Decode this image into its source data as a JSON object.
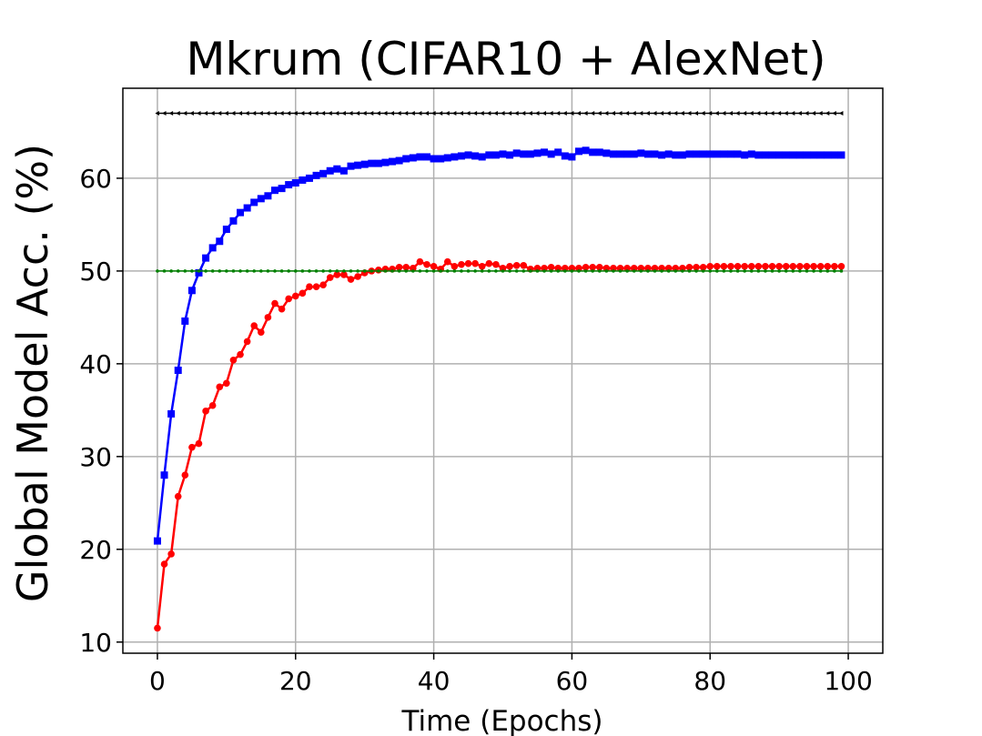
{
  "chart_data": {
    "type": "line",
    "title": "Mkrum (CIFAR10 + AlexNet)",
    "xlabel": "Time (Epochs)",
    "ylabel": "Global Model Acc. (%)",
    "x": [
      0,
      1,
      2,
      3,
      4,
      5,
      6,
      7,
      8,
      9,
      10,
      11,
      12,
      13,
      14,
      15,
      16,
      17,
      18,
      19,
      20,
      21,
      22,
      23,
      24,
      25,
      26,
      27,
      28,
      29,
      30,
      31,
      32,
      33,
      34,
      35,
      36,
      37,
      38,
      39,
      40,
      41,
      42,
      43,
      44,
      45,
      46,
      47,
      48,
      49,
      50,
      51,
      52,
      53,
      54,
      55,
      56,
      57,
      58,
      59,
      60,
      61,
      62,
      63,
      64,
      65,
      66,
      67,
      68,
      69,
      70,
      71,
      72,
      73,
      74,
      75,
      76,
      77,
      78,
      79,
      80,
      81,
      82,
      83,
      84,
      85,
      86,
      87,
      88,
      89,
      90,
      91,
      92,
      93,
      94,
      95,
      96,
      97,
      98,
      99
    ],
    "series": [
      {
        "color": "#0000ff",
        "marker": "square",
        "values": [
          20.9,
          28,
          34.6,
          39.3,
          44.6,
          47.9,
          49.8,
          51.4,
          52.5,
          53.2,
          54.5,
          55.4,
          56.3,
          56.8,
          57.4,
          57.8,
          58.1,
          58.7,
          58.9,
          59.3,
          59.5,
          59.8,
          60,
          60.3,
          60.5,
          60.8,
          61,
          60.8,
          61.3,
          61.4,
          61.5,
          61.6,
          61.6,
          61.7,
          61.8,
          61.9,
          62.1,
          62.2,
          62.3,
          62.3,
          62.1,
          62.1,
          62.2,
          62.3,
          62.4,
          62.5,
          62.4,
          62.3,
          62.5,
          62.5,
          62.6,
          62.5,
          62.7,
          62.6,
          62.6,
          62.7,
          62.8,
          62.6,
          62.8,
          62.4,
          62.3,
          62.9,
          63,
          62.8,
          62.8,
          62.7,
          62.6,
          62.6,
          62.6,
          62.6,
          62.7,
          62.6,
          62.6,
          62.5,
          62.6,
          62.5,
          62.5,
          62.6,
          62.6,
          62.6,
          62.6,
          62.6,
          62.6,
          62.6,
          62.6,
          62.5,
          62.6,
          62.5,
          62.5,
          62.5,
          62.5,
          62.5,
          62.5,
          62.5,
          62.5,
          62.5,
          62.5,
          62.5,
          62.5,
          62.5
        ]
      },
      {
        "color": "#ff0000",
        "marker": "circle",
        "values": [
          11.5,
          18.4,
          19.5,
          25.7,
          28,
          31,
          31.4,
          34.9,
          35.5,
          37.5,
          37.9,
          40.4,
          41,
          42.4,
          44.1,
          43.4,
          45,
          46.5,
          45.9,
          47,
          47.3,
          47.6,
          48.3,
          48.3,
          48.5,
          49.3,
          49.6,
          49.6,
          49.1,
          49.4,
          49.8,
          50,
          50.1,
          50.2,
          50.2,
          50.4,
          50.4,
          50.3,
          51,
          50.7,
          50.5,
          50.2,
          51,
          50.5,
          50.7,
          50.8,
          50.8,
          50.5,
          50.8,
          50.7,
          50.3,
          50.5,
          50.6,
          50.6,
          50.2,
          50.3,
          50.3,
          50.4,
          50.3,
          50.3,
          50.3,
          50.3,
          50.4,
          50.4,
          50.4,
          50.3,
          50.3,
          50.3,
          50.3,
          50.3,
          50.3,
          50.3,
          50.3,
          50.3,
          50.3,
          50.3,
          50.3,
          50.4,
          50.4,
          50.4,
          50.5,
          50.5,
          50.5,
          50.5,
          50.5,
          50.5,
          50.5,
          50.5,
          50.5,
          50.5,
          50.5,
          50.5,
          50.5,
          50.5,
          50.5,
          50.5,
          50.5,
          50.5,
          50.5,
          50.5
        ]
      },
      {
        "color": "#008000",
        "marker": "point",
        "values": [
          50,
          50,
          50,
          50,
          50,
          50,
          50,
          50,
          50,
          50,
          50,
          50,
          50,
          50,
          50,
          50,
          50,
          50,
          50,
          50,
          50,
          50,
          50,
          50,
          50,
          50,
          50,
          50,
          50,
          50,
          50,
          50,
          50,
          50,
          50,
          50,
          50,
          50,
          50,
          50,
          50,
          50,
          50,
          50,
          50,
          50,
          50,
          50,
          50,
          50,
          50,
          50,
          50,
          50,
          50,
          50,
          50,
          50,
          50,
          50,
          50,
          50,
          50,
          50,
          50,
          50,
          50,
          50,
          50,
          50,
          50,
          50,
          50,
          50,
          50,
          50,
          50,
          50,
          50,
          50,
          50,
          50,
          50,
          50,
          50,
          50,
          50,
          50,
          50,
          50,
          50,
          50,
          50,
          50,
          50,
          50,
          50,
          50,
          50,
          50
        ]
      },
      {
        "color": "#000000",
        "marker": "triangle-left",
        "values": [
          67,
          67,
          67,
          67,
          67,
          67,
          67,
          67,
          67,
          67,
          67,
          67,
          67,
          67,
          67,
          67,
          67,
          67,
          67,
          67,
          67,
          67,
          67,
          67,
          67,
          67,
          67,
          67,
          67,
          67,
          67,
          67,
          67,
          67,
          67,
          67,
          67,
          67,
          67,
          67,
          67,
          67,
          67,
          67,
          67,
          67,
          67,
          67,
          67,
          67,
          67,
          67,
          67,
          67,
          67,
          67,
          67,
          67,
          67,
          67,
          67,
          67,
          67,
          67,
          67,
          67,
          67,
          67,
          67,
          67,
          67,
          67,
          67,
          67,
          67,
          67,
          67,
          67,
          67,
          67,
          67,
          67,
          67,
          67,
          67,
          67,
          67,
          67,
          67,
          67,
          67,
          67,
          67,
          67,
          67,
          67,
          67,
          67,
          67,
          67
        ]
      }
    ],
    "xlim": [
      -5,
      105
    ],
    "ylim": [
      8.8,
      69.7
    ],
    "xticks": [
      0,
      20,
      40,
      60,
      80,
      100
    ],
    "yticks": [
      10,
      20,
      30,
      40,
      50,
      60
    ],
    "grid": true
  }
}
